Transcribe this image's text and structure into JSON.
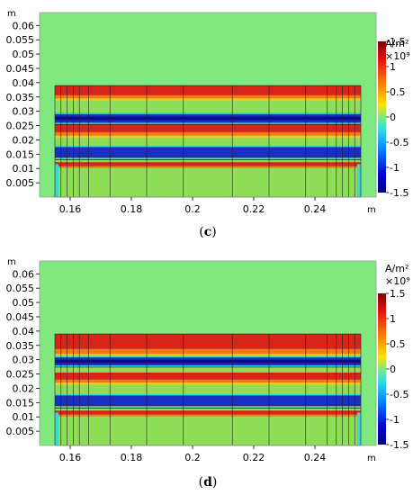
{
  "charts": [
    {
      "caption_open": "(",
      "caption_letter": "c",
      "caption_close": ")",
      "y_unit": "m",
      "x_unit": "m",
      "colorbar_unit": "A/m²",
      "colorbar_scale": "×10⁹",
      "band_top": 0.039,
      "upper_red": [
        0.0345,
        0.039
      ],
      "upper_blue": [
        0.026,
        0.029
      ],
      "lower_red": [
        0.0215,
        0.0255
      ],
      "lower_blue": [
        0.014,
        0.0175
      ],
      "bottom_red": [
        0.0108,
        0.0122
      ],
      "segments_gap": 0.0135
    },
    {
      "caption_open": "(",
      "caption_letter": "d",
      "caption_close": ")",
      "y_unit": "m",
      "x_unit": "m",
      "colorbar_unit": "A/m²",
      "colorbar_scale": "×10⁹",
      "band_top": 0.039,
      "upper_red": [
        0.032,
        0.039
      ],
      "upper_blue": [
        0.028,
        0.0308
      ],
      "lower_red": [
        0.022,
        0.0255
      ],
      "lower_blue": [
        0.014,
        0.0175
      ],
      "bottom_red": [
        0.0108,
        0.0122
      ],
      "segments_gap": 0.0135
    }
  ],
  "chart_data": [
    {
      "type": "heatmap",
      "panel": "c",
      "x_ticks": [
        "0.16",
        "0.18",
        "0.2",
        "0.22",
        "0.24"
      ],
      "x_tick_values": [
        0.16,
        0.18,
        0.2,
        0.22,
        0.24
      ],
      "xlim": [
        0.15,
        0.26
      ],
      "y_ticks": [
        "0.005",
        "0.01",
        "0.015",
        "0.02",
        "0.025",
        "0.03",
        "0.035",
        "0.04",
        "0.045",
        "0.05",
        "0.055",
        "0.06"
      ],
      "y_tick_values": [
        0.005,
        0.01,
        0.015,
        0.02,
        0.025,
        0.03,
        0.035,
        0.04,
        0.045,
        0.05,
        0.055,
        0.06
      ],
      "ylim": [
        0,
        0.0645
      ],
      "domain_x": [
        0.155,
        0.255
      ],
      "domain_y": [
        0,
        0.039
      ],
      "colorbar_ticks": [
        "1.5",
        "1",
        "0.5",
        "0",
        "-0.5",
        "-1",
        "-1.5"
      ],
      "colorbar_values": [
        1.5,
        1,
        0.5,
        0,
        -0.5,
        -1,
        -1.5
      ],
      "colorbar_range": [
        -1.5,
        1.5
      ]
    },
    {
      "type": "heatmap",
      "panel": "d",
      "x_ticks": [
        "0.16",
        "0.18",
        "0.2",
        "0.22",
        "0.24"
      ],
      "x_tick_values": [
        0.16,
        0.18,
        0.2,
        0.22,
        0.24
      ],
      "xlim": [
        0.15,
        0.26
      ],
      "y_ticks": [
        "0.005",
        "0.01",
        "0.015",
        "0.02",
        "0.025",
        "0.03",
        "0.035",
        "0.04",
        "0.045",
        "0.05",
        "0.055",
        "0.06"
      ],
      "y_tick_values": [
        0.005,
        0.01,
        0.015,
        0.02,
        0.025,
        0.03,
        0.035,
        0.04,
        0.045,
        0.05,
        0.055,
        0.06
      ],
      "ylim": [
        0,
        0.0645
      ],
      "domain_x": [
        0.155,
        0.255
      ],
      "domain_y": [
        0,
        0.039
      ],
      "colorbar_ticks": [
        "1.5",
        "1",
        "0.5",
        "0",
        "-0.5",
        "-1",
        "-1.5"
      ],
      "colorbar_values": [
        1.5,
        1,
        0.5,
        0,
        -0.5,
        -1,
        -1.5
      ],
      "colorbar_range": [
        -1.5,
        1.5
      ]
    }
  ],
  "colors": {
    "background_field": "#7fe87f",
    "red": "#d8241b",
    "orange": "#f07a1a",
    "yellow": "#e8d018",
    "green": "#8edd56",
    "cyan": "#37d8d8",
    "blue": "#1a2fc8",
    "dark_blue": "#0a0a8a"
  }
}
